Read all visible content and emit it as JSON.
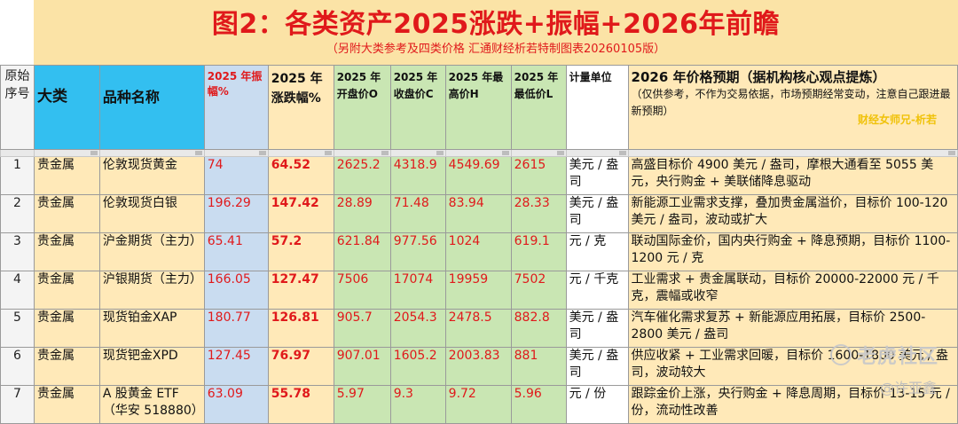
{
  "title": "图2：各类资产2025涨跌+振幅+2026年前瞻",
  "subtitle": "（另附大类参考及四类价格 汇通财经析若特制图表20260105版）",
  "headers": {
    "index": "原始序号",
    "category": "大类",
    "name": "品种名称",
    "amplitude": "2025 年振幅%",
    "change": "2025 年涨跌幅%",
    "open": "2025 年开盘价O",
    "close": "2025 年收盘价C",
    "high": "2025 年最高价H",
    "low": "2025 年最低价L",
    "unit": "计量单位",
    "outlook_title": "2026 年价格预期（据机构核心观点提炼）",
    "outlook_note": "（仅供参考，不作为交易依据，市场预期经常变动，注意自己跟进最新预期）",
    "outlook_author": "财经女师兄-析若"
  },
  "rows": [
    {
      "index": "1",
      "category": "贵金属",
      "name": "伦敦现货黄金",
      "amplitude": "74",
      "change": "64.52",
      "open": "2625.2",
      "close": "4318.9",
      "high": "4549.69",
      "low": "2615",
      "unit": "美元 / 盎司",
      "outlook": "高盛目标价 4900 美元 / 盎司，摩根大通看至 5055 美元，央行购金 + 美联储降息驱动"
    },
    {
      "index": "2",
      "category": "贵金属",
      "name": "伦敦现货白银",
      "amplitude": "196.29",
      "change": "147.42",
      "open": "28.89",
      "close": "71.48",
      "high": "83.94",
      "low": "28.33",
      "unit": "美元 / 盎司",
      "outlook": "新能源工业需求支撑，叠加贵金属溢价，目标价 100-120 美元 / 盎司，波动或扩大"
    },
    {
      "index": "3",
      "category": "贵金属",
      "name": "沪金期货（主力）",
      "amplitude": "65.41",
      "change": "57.2",
      "open": "621.84",
      "close": "977.56",
      "high": "1024",
      "low": "619.1",
      "unit": "元 / 克",
      "outlook": "联动国际金价，国内央行购金 + 降息预期，目标价 1100-1200 元 / 克"
    },
    {
      "index": "4",
      "category": "贵金属",
      "name": "沪银期货（主力）",
      "amplitude": "166.05",
      "change": "127.47",
      "open": "7506",
      "close": "17074",
      "high": "19959",
      "low": "7502",
      "unit": "元 / 千克",
      "outlook": "工业需求 + 贵金属联动，目标价 20000-22000 元 / 千克，震幅或收窄"
    },
    {
      "index": "5",
      "category": "贵金属",
      "name": "现货铂金XAP",
      "amplitude": "180.77",
      "change": "126.81",
      "open": "905.7",
      "close": "2054.3",
      "high": "2478.5",
      "low": "882.8",
      "unit": "美元 / 盎司",
      "outlook": "汽车催化需求复苏 + 新能源应用拓展，目标价 2500-2800 美元 / 盎司"
    },
    {
      "index": "6",
      "category": "贵金属",
      "name": "现货钯金XPD",
      "amplitude": "127.45",
      "change": "76.97",
      "open": "907.01",
      "close": "1605.2",
      "high": "2003.83",
      "low": "881",
      "unit": "美元 / 盎司",
      "outlook": "供应收紧 + 工业需求回暖，目标价 1600-1800 美元 / 盎司，波动较大"
    },
    {
      "index": "7",
      "category": "贵金属",
      "name": "A 股黄金 ETF（华安 518880）",
      "amplitude": "63.09",
      "change": "55.78",
      "open": "5.97",
      "close": "9.3",
      "high": "9.72",
      "low": "5.96",
      "unit": "元 / 份",
      "outlook": "跟踪金价上涨，央行购金 + 降息周期，目标价 13-15 元 / 份，流动性改善"
    }
  ],
  "watermarks": {
    "brand": "老虎社区",
    "user": "@许亚鑫"
  }
}
